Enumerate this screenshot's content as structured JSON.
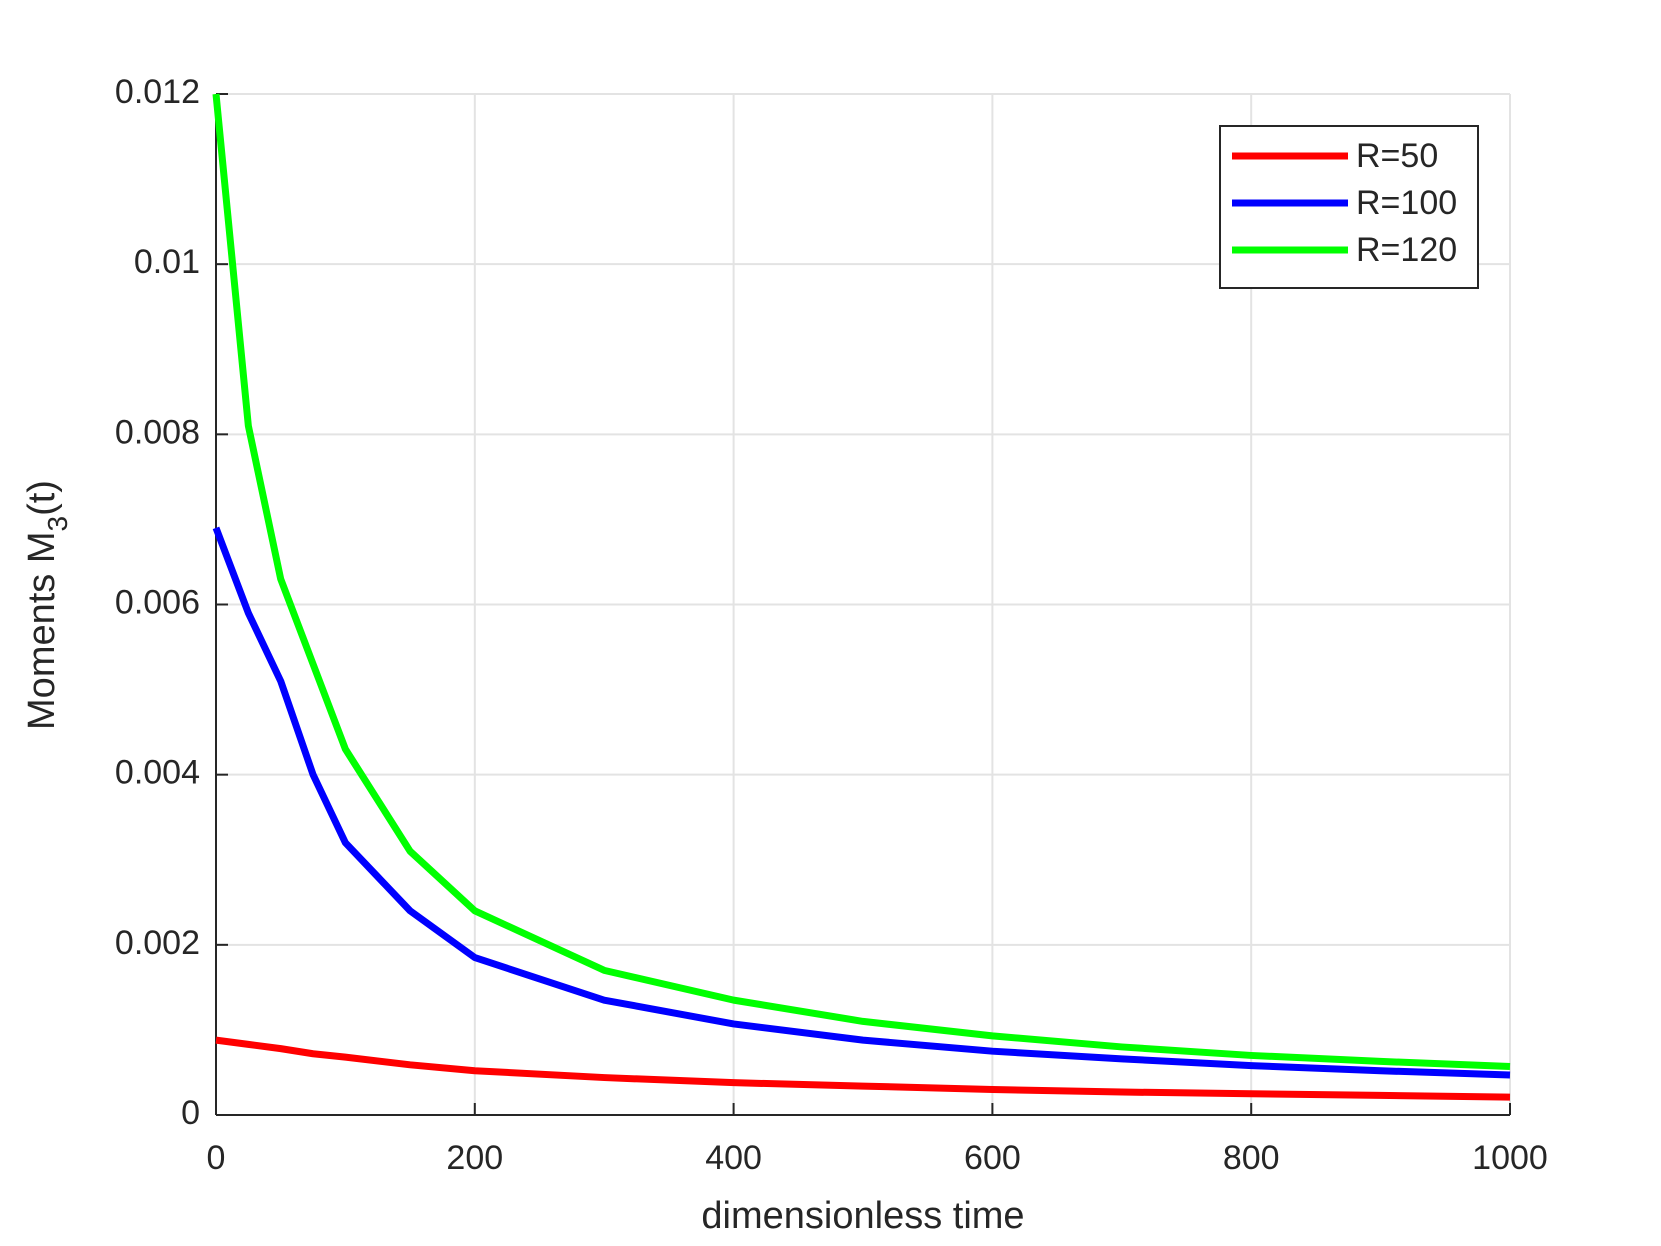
{
  "chart_data": {
    "type": "line",
    "x_label": "dimensionless time",
    "y_label": [
      "Moments M",
      "3",
      "(t)"
    ],
    "x": [
      0,
      25,
      50,
      75,
      100,
      150,
      200,
      300,
      400,
      500,
      600,
      700,
      800,
      900,
      1000
    ],
    "series": [
      {
        "name": "R=50",
        "color": "#ff0000",
        "values": [
          0.00088,
          0.00083,
          0.00078,
          0.00072,
          0.00068,
          0.00059,
          0.00052,
          0.00044,
          0.00038,
          0.00034,
          0.0003,
          0.00027,
          0.00025,
          0.00023,
          0.00021
        ]
      },
      {
        "name": "R=100",
        "color": "#0000ff",
        "values": [
          0.0069,
          0.0059,
          0.0051,
          0.004,
          0.0032,
          0.0024,
          0.00185,
          0.00135,
          0.00107,
          0.00088,
          0.00075,
          0.00066,
          0.00058,
          0.00052,
          0.00047
        ]
      },
      {
        "name": "R=120",
        "color": "#00ff00",
        "values": [
          0.012,
          0.0081,
          0.0063,
          0.0053,
          0.0043,
          0.0031,
          0.0024,
          0.0017,
          0.00135,
          0.0011,
          0.00093,
          0.0008,
          0.0007,
          0.00063,
          0.00057
        ]
      }
    ],
    "xlim": [
      0,
      1000
    ],
    "xticks": [
      0,
      200,
      400,
      600,
      800,
      1000
    ],
    "ylim": [
      0,
      0.012
    ],
    "yticks": [
      0,
      0.002,
      0.004,
      0.006,
      0.008,
      0.01,
      0.012
    ],
    "grid": true,
    "legend": "top-right"
  }
}
